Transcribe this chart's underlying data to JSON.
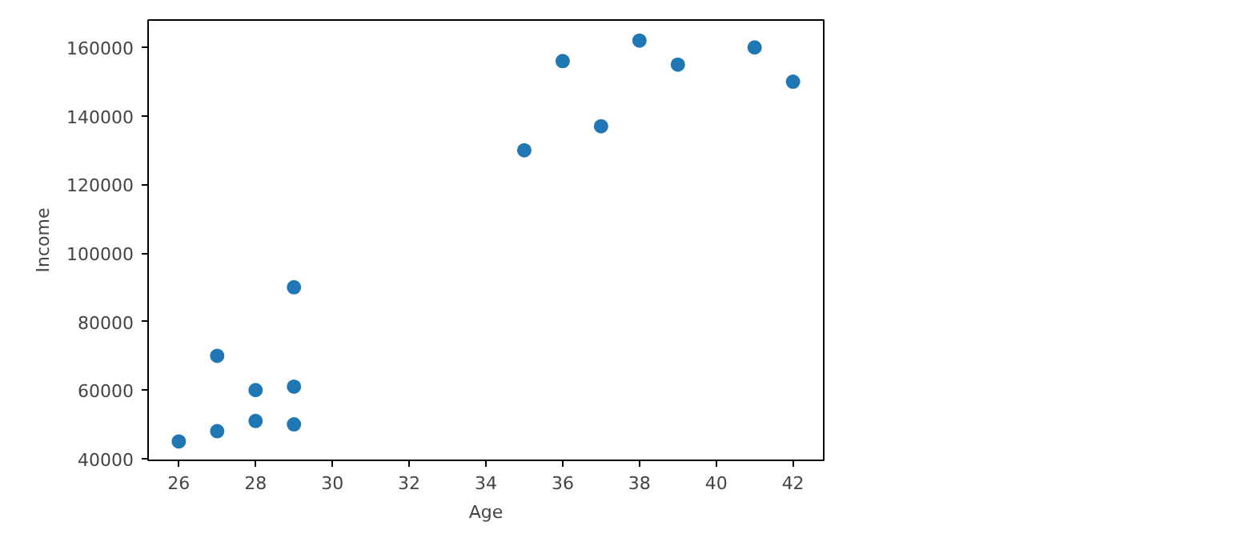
{
  "chart_data": {
    "type": "scatter",
    "xlabel": "Age",
    "ylabel": "Income",
    "color": "#1f77b4",
    "marker": "circle",
    "x": [
      26,
      27,
      27,
      28,
      28,
      29,
      29,
      29,
      35,
      36,
      37,
      38,
      39,
      41,
      42
    ],
    "values": [
      45000,
      48000,
      70000,
      60000,
      51000,
      90000,
      61000,
      50000,
      130000,
      156000,
      137000,
      162000,
      155000,
      160000,
      150000
    ],
    "xlim": [
      25.2,
      42.8
    ],
    "ylim": [
      39500,
      168000
    ],
    "xticks": [
      26,
      28,
      30,
      32,
      34,
      36,
      38,
      40,
      42
    ],
    "yticks": [
      40000,
      60000,
      80000,
      100000,
      120000,
      140000,
      160000
    ],
    "grid": false
  }
}
